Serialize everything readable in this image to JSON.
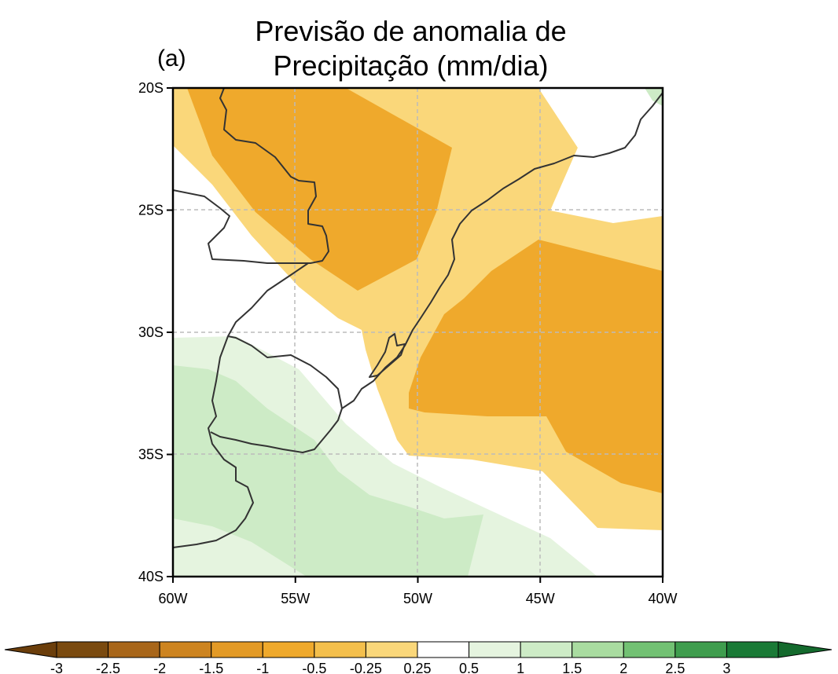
{
  "map": {
    "title_line1": "Previsão de anomalia de",
    "title_line2": "Precipitação (mm/dia)",
    "panel_label": "(a)",
    "lat_labels": [
      "20S",
      "25S",
      "30S",
      "35S",
      "40S"
    ],
    "lon_labels": [
      "60W",
      "55W",
      "50W",
      "45W",
      "40W"
    ],
    "gridlines": "dashed",
    "colors": {
      "dry_light": "#fad77a",
      "dry_medium": "#efa92c",
      "wet_light": "#e5f4df",
      "wet_medium": "#cdebc6",
      "coastline": "#333333"
    }
  },
  "colorbar": {
    "labels": [
      "-3",
      "-2.5",
      "-2",
      "-1.5",
      "-1",
      "-0.5",
      "-0.25",
      "0.25",
      "0.5",
      "1",
      "1.5",
      "2",
      "2.5",
      "3"
    ],
    "colors": [
      "#7a4a0f",
      "#a8661a",
      "#cd8420",
      "#e39a26",
      "#efa92c",
      "#f4bf4c",
      "#fad77a",
      "#ffffff",
      "#e5f4df",
      "#cdebc6",
      "#a9dca0",
      "#72c173",
      "#3f9d4e",
      "#1a7a36"
    ],
    "low_end_color": "#6b3e0b",
    "high_end_color": "#146a2d"
  }
}
